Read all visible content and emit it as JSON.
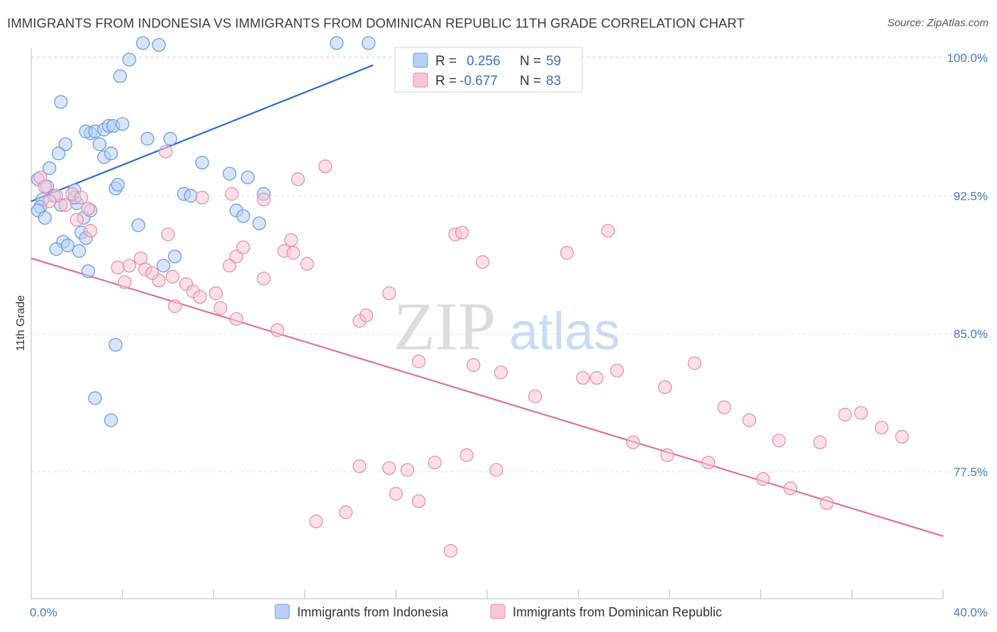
{
  "title": "IMMIGRANTS FROM INDONESIA VS IMMIGRANTS FROM DOMINICAN REPUBLIC 11TH GRADE CORRELATION CHART",
  "source": "Source: ZipAtlas.com",
  "watermark": {
    "zip": "ZIP",
    "atlas": "atlas"
  },
  "chart_data": {
    "type": "scatter",
    "ylabel": "11th Grade",
    "xlim": [
      0,
      40
    ],
    "ylim": [
      70.6,
      101.6
    ],
    "x_tick_labels": [
      "0.0%",
      "40.0%"
    ],
    "y_ticks": [
      100,
      92.5,
      85,
      77.5
    ],
    "y_tick_labels": [
      "100.0%",
      "92.5%",
      "85.0%",
      "77.5%"
    ],
    "grid": true,
    "legend_position": "top-center",
    "series": [
      {
        "name": "Immigrants from Indonesia",
        "color": "#6a9ee0",
        "fill": "#b8d0f4",
        "r_label": "R =",
        "r_value": "0.256",
        "n_label": "N =",
        "n_value": "59",
        "trend": {
          "x0": 0,
          "y0": 92.2,
          "x1": 15,
          "y1": 99.6,
          "color": "#2c6cc8"
        },
        "points": [
          [
            0.3,
            93.4
          ],
          [
            0.8,
            94.0
          ],
          [
            1.5,
            95.3
          ],
          [
            1.2,
            94.8
          ],
          [
            0.7,
            93.0
          ],
          [
            0.5,
            92.3
          ],
          [
            0.4,
            91.9
          ],
          [
            0.3,
            91.7
          ],
          [
            0.6,
            91.3
          ],
          [
            1.0,
            92.5
          ],
          [
            1.3,
            92.0
          ],
          [
            1.4,
            90.0
          ],
          [
            1.1,
            89.6
          ],
          [
            1.9,
            92.8
          ],
          [
            2.0,
            92.1
          ],
          [
            2.3,
            91.3
          ],
          [
            2.6,
            95.9
          ],
          [
            3.0,
            95.3
          ],
          [
            3.2,
            94.6
          ],
          [
            2.4,
            96.0
          ],
          [
            2.8,
            96.0
          ],
          [
            3.5,
            94.8
          ],
          [
            1.3,
            97.6
          ],
          [
            3.2,
            96.1
          ],
          [
            3.4,
            96.3
          ],
          [
            3.6,
            96.3
          ],
          [
            4.0,
            96.4
          ],
          [
            3.9,
            99.0
          ],
          [
            4.3,
            99.9
          ],
          [
            4.9,
            100.8
          ],
          [
            5.6,
            100.7
          ],
          [
            5.1,
            95.6
          ],
          [
            6.1,
            95.6
          ],
          [
            6.7,
            92.6
          ],
          [
            7.0,
            92.5
          ],
          [
            7.5,
            94.3
          ],
          [
            8.7,
            93.7
          ],
          [
            9.5,
            93.5
          ],
          [
            9.0,
            91.7
          ],
          [
            9.3,
            91.4
          ],
          [
            10.0,
            91.0
          ],
          [
            3.7,
            92.9
          ],
          [
            3.8,
            93.1
          ],
          [
            2.6,
            91.7
          ],
          [
            1.9,
            92.4
          ],
          [
            2.2,
            90.5
          ],
          [
            2.4,
            90.2
          ],
          [
            1.6,
            89.8
          ],
          [
            2.1,
            89.5
          ],
          [
            2.5,
            88.4
          ],
          [
            4.7,
            90.9
          ],
          [
            6.3,
            89.2
          ],
          [
            5.8,
            88.7
          ],
          [
            3.7,
            84.4
          ],
          [
            2.8,
            81.5
          ],
          [
            3.5,
            80.3
          ],
          [
            10.2,
            92.6
          ],
          [
            13.4,
            100.8
          ],
          [
            14.8,
            100.8
          ]
        ]
      },
      {
        "name": "Immigrants from Dominican Republic",
        "color": "#ea8fae",
        "fill": "#f8c6d6",
        "r_label": "R =",
        "r_value": "-0.677",
        "n_label": "N =",
        "n_value": "83",
        "trend": {
          "x0": 0,
          "y0": 89.1,
          "x1": 40,
          "y1": 74.0,
          "color": "#e0709a"
        },
        "points": [
          [
            0.4,
            93.5
          ],
          [
            0.6,
            93.0
          ],
          [
            1.1,
            92.5
          ],
          [
            1.8,
            92.6
          ],
          [
            2.2,
            92.4
          ],
          [
            2.5,
            91.8
          ],
          [
            0.8,
            92.2
          ],
          [
            1.5,
            92.0
          ],
          [
            2.0,
            91.2
          ],
          [
            2.6,
            90.6
          ],
          [
            4.8,
            89.1
          ],
          [
            4.3,
            88.7
          ],
          [
            5.0,
            88.5
          ],
          [
            3.8,
            88.6
          ],
          [
            5.6,
            87.9
          ],
          [
            6.2,
            88.1
          ],
          [
            4.1,
            87.8
          ],
          [
            5.3,
            88.3
          ],
          [
            6.8,
            87.7
          ],
          [
            7.1,
            87.3
          ],
          [
            7.4,
            87.0
          ],
          [
            8.1,
            87.2
          ],
          [
            8.7,
            88.7
          ],
          [
            9.0,
            89.2
          ],
          [
            10.2,
            88.0
          ],
          [
            11.1,
            89.5
          ],
          [
            11.4,
            90.1
          ],
          [
            9.3,
            89.7
          ],
          [
            6.0,
            90.4
          ],
          [
            7.5,
            92.4
          ],
          [
            5.9,
            94.9
          ],
          [
            8.8,
            92.6
          ],
          [
            11.7,
            93.4
          ],
          [
            10.2,
            92.3
          ],
          [
            11.5,
            89.4
          ],
          [
            12.1,
            88.8
          ],
          [
            12.9,
            94.1
          ],
          [
            18.6,
            90.4
          ],
          [
            18.9,
            90.5
          ],
          [
            19.8,
            88.9
          ],
          [
            23.5,
            89.4
          ],
          [
            25.3,
            90.6
          ],
          [
            6.3,
            86.5
          ],
          [
            8.3,
            86.4
          ],
          [
            9.0,
            85.8
          ],
          [
            10.8,
            85.2
          ],
          [
            14.4,
            85.7
          ],
          [
            17.0,
            83.5
          ],
          [
            14.7,
            86.0
          ],
          [
            15.7,
            87.2
          ],
          [
            19.4,
            83.3
          ],
          [
            20.6,
            82.9
          ],
          [
            22.1,
            81.6
          ],
          [
            24.2,
            82.6
          ],
          [
            27.8,
            82.1
          ],
          [
            29.1,
            83.4
          ],
          [
            24.8,
            82.6
          ],
          [
            25.7,
            83.0
          ],
          [
            30.4,
            81.0
          ],
          [
            31.5,
            80.3
          ],
          [
            32.8,
            79.2
          ],
          [
            34.6,
            79.1
          ],
          [
            35.7,
            80.6
          ],
          [
            36.4,
            80.7
          ],
          [
            37.3,
            79.9
          ],
          [
            38.2,
            79.4
          ],
          [
            26.4,
            79.1
          ],
          [
            27.9,
            78.4
          ],
          [
            29.7,
            78.0
          ],
          [
            32.1,
            77.1
          ],
          [
            33.3,
            76.6
          ],
          [
            34.9,
            75.8
          ],
          [
            14.4,
            77.8
          ],
          [
            15.7,
            77.7
          ],
          [
            16.5,
            77.6
          ],
          [
            17.7,
            78.0
          ],
          [
            19.1,
            78.4
          ],
          [
            20.4,
            77.6
          ],
          [
            13.8,
            75.3
          ],
          [
            17.0,
            75.9
          ],
          [
            16.0,
            76.3
          ],
          [
            12.5,
            74.8
          ],
          [
            18.4,
            73.2
          ]
        ]
      }
    ]
  }
}
